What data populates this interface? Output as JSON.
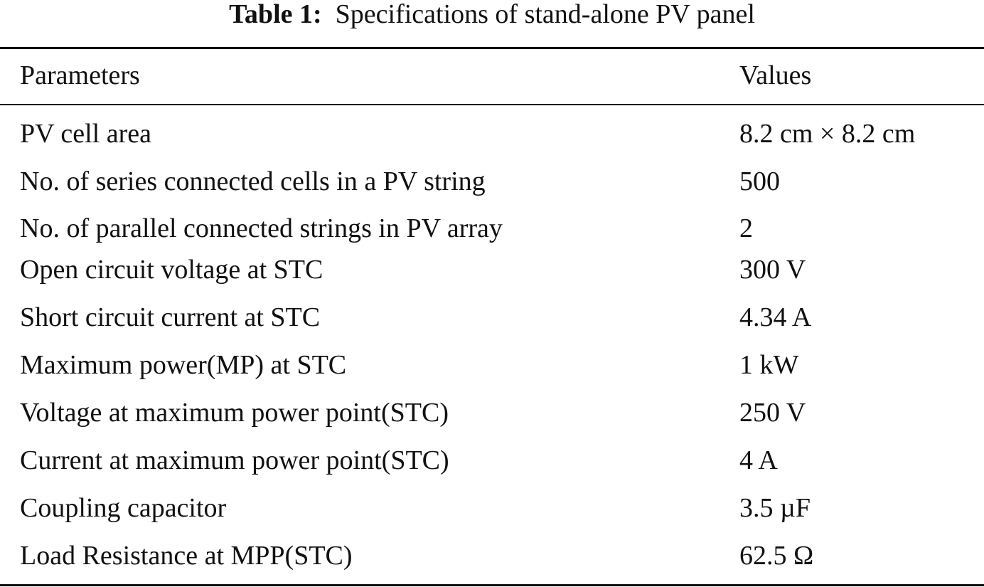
{
  "caption": {
    "label": "Table 1:",
    "text": "Specifications of stand-alone PV panel"
  },
  "table": {
    "headers": [
      "Parameters",
      "Values"
    ],
    "rows": [
      [
        "PV cell area",
        "8.2 cm × 8.2 cm"
      ],
      [
        "No. of series connected cells in a PV string",
        "500"
      ],
      [
        "No. of parallel connected strings in PV array",
        "2"
      ],
      [
        "Open circuit voltage at STC",
        "300 V"
      ],
      [
        "Short circuit current at STC",
        "4.34 A"
      ],
      [
        "Maximum power(MP) at STC",
        "1 kW"
      ],
      [
        "Voltage at maximum power point(STC)",
        "250 V"
      ],
      [
        "Current at maximum power point(STC)",
        "4 A"
      ],
      [
        "Coupling capacitor",
        "3.5 µF"
      ],
      [
        "Load Resistance at MPP(STC)",
        "62.5 Ω"
      ]
    ]
  }
}
